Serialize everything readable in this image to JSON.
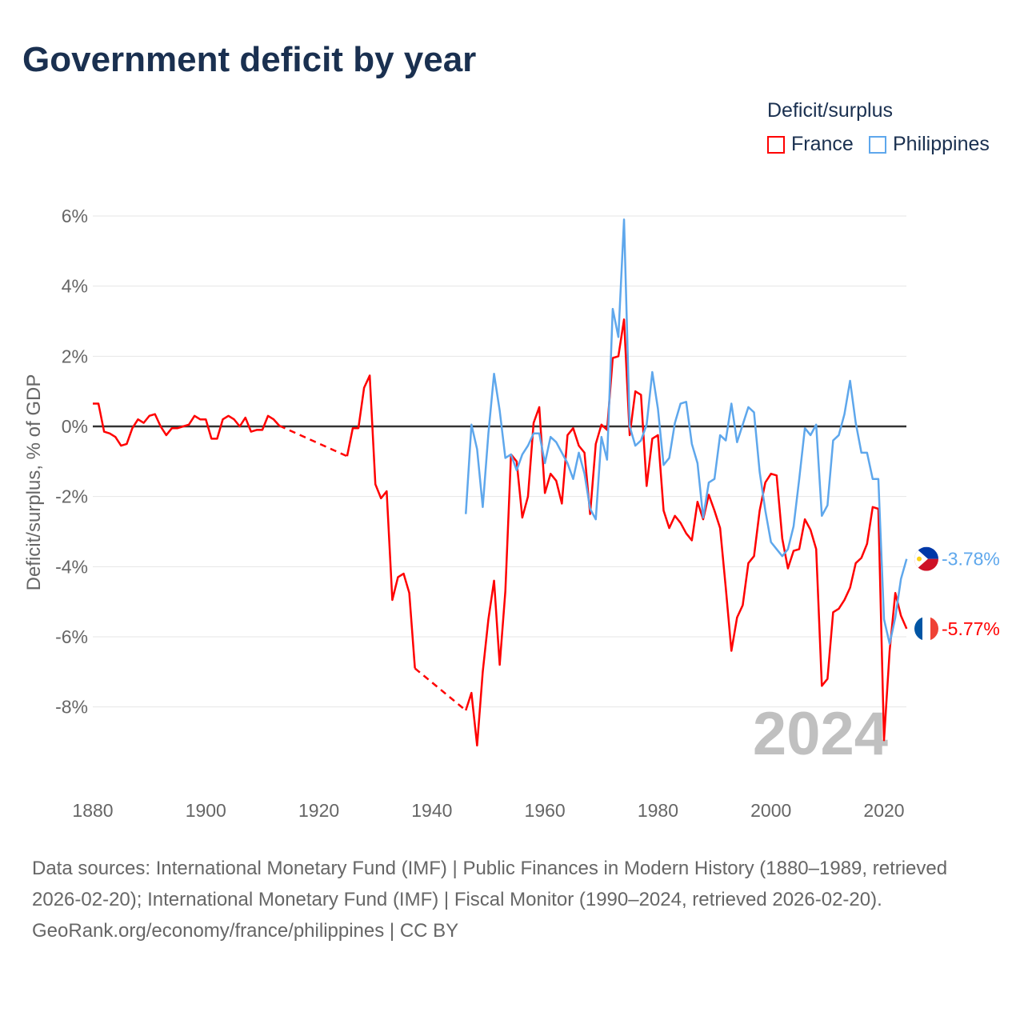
{
  "title": "Government deficit by year",
  "legend": {
    "title": "Deficit/surplus",
    "items": [
      {
        "label": "France",
        "color": "#ff0000"
      },
      {
        "label": "Philippines",
        "color": "#5ea7ec"
      }
    ]
  },
  "watermark_year": "2024",
  "source": {
    "text": "Data sources: International Monetary Fund (IMF) | Public Finances in Modern History (1880–1989, retrieved 2026-02-20); International Monetary Fund (IMF) | Fiscal Monitor (1990–2024, retrieved 2026-02-20).",
    "credit": "GeoRank.org/economy/france/philippines | CC BY"
  },
  "chart_data": {
    "type": "line",
    "title": "Government deficit by year",
    "xlabel": "",
    "ylabel": "Deficit/surplus, % of GDP",
    "xlim": [
      1880,
      2024
    ],
    "ylim": [
      -9.9,
      6
    ],
    "x_ticks": [
      "1880",
      "1900",
      "1920",
      "1940",
      "1960",
      "1980",
      "2000",
      "2020"
    ],
    "y_ticks": [
      {
        "v": 6,
        "label": "6%"
      },
      {
        "v": 4,
        "label": "4%"
      },
      {
        "v": 2,
        "label": "2%"
      },
      {
        "v": 0,
        "label": "0%"
      },
      {
        "v": -2,
        "label": "-2%"
      },
      {
        "v": -4,
        "label": "-4%"
      },
      {
        "v": -6,
        "label": "-6%"
      },
      {
        "v": -8,
        "label": "-8%"
      }
    ],
    "series": [
      {
        "name": "France",
        "color": "#ff0000",
        "end_label": "-5.77%",
        "points": [
          [
            1880,
            0.65
          ],
          [
            1881,
            0.65
          ],
          [
            1882,
            -0.15
          ],
          [
            1883,
            -0.2
          ],
          [
            1884,
            -0.3
          ],
          [
            1885,
            -0.55
          ],
          [
            1886,
            -0.5
          ],
          [
            1887,
            -0.05
          ],
          [
            1888,
            0.2
          ],
          [
            1889,
            0.1
          ],
          [
            1890,
            0.3
          ],
          [
            1891,
            0.35
          ],
          [
            1892,
            0
          ],
          [
            1893,
            -0.25
          ],
          [
            1894,
            -0.05
          ],
          [
            1895,
            -0.05
          ],
          [
            1896,
            0
          ],
          [
            1897,
            0.05
          ],
          [
            1898,
            0.3
          ],
          [
            1899,
            0.2
          ],
          [
            1900,
            0.2
          ],
          [
            1901,
            -0.35
          ],
          [
            1902,
            -0.35
          ],
          [
            1903,
            0.2
          ],
          [
            1904,
            0.3
          ],
          [
            1905,
            0.2
          ],
          [
            1906,
            0
          ],
          [
            1907,
            0.25
          ],
          [
            1908,
            -0.15
          ],
          [
            1909,
            -0.1
          ],
          [
            1910,
            -0.1
          ],
          [
            1911,
            0.3
          ],
          [
            1912,
            0.2
          ],
          [
            1913,
            0.02
          ],
          [
            1925,
            -0.85
          ],
          [
            1926,
            -0.05
          ],
          [
            1927,
            -0.05
          ],
          [
            1928,
            1.1
          ],
          [
            1929,
            1.45
          ],
          [
            1930,
            -1.65
          ],
          [
            1931,
            -2.05
          ],
          [
            1932,
            -1.85
          ],
          [
            1933,
            -4.95
          ],
          [
            1934,
            -4.3
          ],
          [
            1935,
            -4.2
          ],
          [
            1936,
            -4.75
          ],
          [
            1937,
            -6.9
          ],
          [
            1946,
            -8.1
          ],
          [
            1947,
            -7.6
          ],
          [
            1948,
            -9.1
          ],
          [
            1949,
            -7.0
          ],
          [
            1950,
            -5.5
          ],
          [
            1951,
            -4.4
          ],
          [
            1952,
            -6.8
          ],
          [
            1953,
            -4.7
          ],
          [
            1954,
            -0.8
          ],
          [
            1955,
            -1.0
          ],
          [
            1956,
            -2.6
          ],
          [
            1957,
            -2.0
          ],
          [
            1958,
            0.1
          ],
          [
            1959,
            0.55
          ],
          [
            1960,
            -1.9
          ],
          [
            1961,
            -1.35
          ],
          [
            1962,
            -1.55
          ],
          [
            1963,
            -2.2
          ],
          [
            1964,
            -0.25
          ],
          [
            1965,
            -0.05
          ],
          [
            1966,
            -0.55
          ],
          [
            1967,
            -0.75
          ],
          [
            1968,
            -2.5
          ],
          [
            1969,
            -0.5
          ],
          [
            1970,
            0.05
          ],
          [
            1971,
            -0.1
          ],
          [
            1972,
            1.95
          ],
          [
            1973,
            2.0
          ],
          [
            1974,
            3.05
          ],
          [
            1975,
            -0.25
          ],
          [
            1976,
            1.0
          ],
          [
            1977,
            0.9
          ],
          [
            1978,
            -1.7
          ],
          [
            1979,
            -0.35
          ],
          [
            1980,
            -0.25
          ],
          [
            1981,
            -2.4
          ],
          [
            1982,
            -2.9
          ],
          [
            1983,
            -2.55
          ],
          [
            1984,
            -2.75
          ],
          [
            1985,
            -3.05
          ],
          [
            1986,
            -3.25
          ],
          [
            1987,
            -2.15
          ],
          [
            1988,
            -2.65
          ],
          [
            1989,
            -1.95
          ],
          [
            1990,
            -2.4
          ],
          [
            1991,
            -2.9
          ],
          [
            1992,
            -4.6
          ],
          [
            1993,
            -6.4
          ],
          [
            1994,
            -5.45
          ],
          [
            1995,
            -5.1
          ],
          [
            1996,
            -3.9
          ],
          [
            1997,
            -3.7
          ],
          [
            1998,
            -2.4
          ],
          [
            1999,
            -1.6
          ],
          [
            2000,
            -1.35
          ],
          [
            2001,
            -1.4
          ],
          [
            2002,
            -3.2
          ],
          [
            2003,
            -4.05
          ],
          [
            2004,
            -3.55
          ],
          [
            2005,
            -3.5
          ],
          [
            2006,
            -2.65
          ],
          [
            2007,
            -2.95
          ],
          [
            2008,
            -3.5
          ],
          [
            2009,
            -7.4
          ],
          [
            2010,
            -7.2
          ],
          [
            2011,
            -5.3
          ],
          [
            2012,
            -5.2
          ],
          [
            2013,
            -4.95
          ],
          [
            2014,
            -4.6
          ],
          [
            2015,
            -3.9
          ],
          [
            2016,
            -3.75
          ],
          [
            2017,
            -3.35
          ],
          [
            2018,
            -2.3
          ],
          [
            2019,
            -2.35
          ],
          [
            2020,
            -8.95
          ],
          [
            2021,
            -6.4
          ],
          [
            2022,
            -4.75
          ],
          [
            2023,
            -5.4
          ],
          [
            2024,
            -5.77
          ]
        ]
      },
      {
        "name": "Philippines",
        "color": "#5ea7ec",
        "end_label": "-3.78%",
        "points": [
          [
            1946,
            -2.5
          ],
          [
            1947,
            0.05
          ],
          [
            1948,
            -0.65
          ],
          [
            1949,
            -2.3
          ],
          [
            1950,
            -0.2
          ],
          [
            1951,
            1.5
          ],
          [
            1952,
            0.45
          ],
          [
            1953,
            -0.9
          ],
          [
            1954,
            -0.8
          ],
          [
            1955,
            -1.25
          ],
          [
            1956,
            -0.8
          ],
          [
            1957,
            -0.55
          ],
          [
            1958,
            -0.2
          ],
          [
            1959,
            -0.2
          ],
          [
            1960,
            -1.05
          ],
          [
            1961,
            -0.3
          ],
          [
            1962,
            -0.45
          ],
          [
            1963,
            -0.75
          ],
          [
            1964,
            -1.05
          ],
          [
            1965,
            -1.5
          ],
          [
            1966,
            -0.75
          ],
          [
            1967,
            -1.35
          ],
          [
            1968,
            -2.35
          ],
          [
            1969,
            -2.65
          ],
          [
            1970,
            -0.3
          ],
          [
            1971,
            -0.95
          ],
          [
            1972,
            3.35
          ],
          [
            1973,
            2.55
          ],
          [
            1974,
            5.9
          ],
          [
            1975,
            0
          ],
          [
            1976,
            -0.55
          ],
          [
            1977,
            -0.4
          ],
          [
            1978,
            0.05
          ],
          [
            1979,
            1.55
          ],
          [
            1980,
            0.5
          ],
          [
            1981,
            -1.1
          ],
          [
            1982,
            -0.9
          ],
          [
            1983,
            0.1
          ],
          [
            1984,
            0.65
          ],
          [
            1985,
            0.7
          ],
          [
            1986,
            -0.5
          ],
          [
            1987,
            -1.05
          ],
          [
            1988,
            -2.6
          ],
          [
            1989,
            -1.6
          ],
          [
            1990,
            -1.5
          ],
          [
            1991,
            -0.25
          ],
          [
            1992,
            -0.4
          ],
          [
            1993,
            0.65
          ],
          [
            1994,
            -0.45
          ],
          [
            1995,
            0.05
          ],
          [
            1996,
            0.55
          ],
          [
            1997,
            0.4
          ],
          [
            1998,
            -1.3
          ],
          [
            1999,
            -2.4
          ],
          [
            2000,
            -3.3
          ],
          [
            2001,
            -3.5
          ],
          [
            2002,
            -3.7
          ],
          [
            2003,
            -3.5
          ],
          [
            2004,
            -2.85
          ],
          [
            2005,
            -1.5
          ],
          [
            2006,
            -0.05
          ],
          [
            2007,
            -0.25
          ],
          [
            2008,
            0.05
          ],
          [
            2009,
            -2.55
          ],
          [
            2010,
            -2.25
          ],
          [
            2011,
            -0.4
          ],
          [
            2012,
            -0.25
          ],
          [
            2013,
            0.35
          ],
          [
            2014,
            1.3
          ],
          [
            2015,
            0.1
          ],
          [
            2016,
            -0.75
          ],
          [
            2017,
            -0.75
          ],
          [
            2018,
            -1.5
          ],
          [
            2019,
            -1.5
          ],
          [
            2020,
            -5.5
          ],
          [
            2021,
            -6.2
          ],
          [
            2022,
            -5.45
          ],
          [
            2023,
            -4.35
          ],
          [
            2024,
            -3.78
          ]
        ]
      }
    ]
  }
}
